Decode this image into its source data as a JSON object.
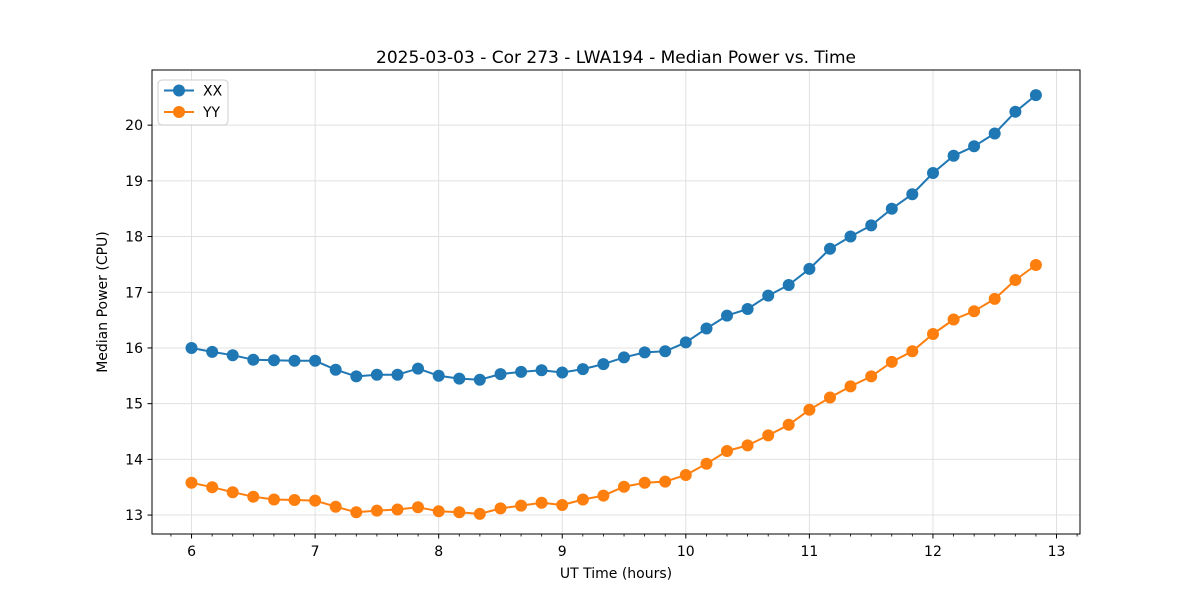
{
  "figure": {
    "title": "2025-03-03 - Cor 273 - LWA194 - Median Power vs. Time",
    "xlabel": "UT Time (hours)",
    "ylabel": "Median Power (CPU)"
  },
  "chart_data": {
    "type": "line",
    "title": "2025-03-03 - Cor 273 - LWA194 - Median Power vs. Time",
    "xlabel": "UT Time (hours)",
    "ylabel": "Median Power (CPU)",
    "xlim": [
      5.68,
      13.19
    ],
    "ylim": [
      12.66,
      20.99
    ],
    "x_ticks": [
      6,
      7,
      8,
      9,
      10,
      11,
      12,
      13
    ],
    "y_ticks": [
      13,
      14,
      15,
      16,
      17,
      18,
      19,
      20
    ],
    "x_minor_step": 0.1667,
    "grid": true,
    "grid_color": "#e0e0e0",
    "spine_color": "#000000",
    "background_color": "#ffffff",
    "legend_position": "upper left",
    "x": [
      6.0,
      6.167,
      6.333,
      6.5,
      6.667,
      6.833,
      7.0,
      7.167,
      7.333,
      7.5,
      7.667,
      7.833,
      8.0,
      8.167,
      8.333,
      8.5,
      8.667,
      8.833,
      9.0,
      9.167,
      9.333,
      9.5,
      9.667,
      9.833,
      10.0,
      10.167,
      10.333,
      10.5,
      10.667,
      10.833,
      11.0,
      11.167,
      11.333,
      11.5,
      11.667,
      11.833,
      12.0,
      12.167,
      12.333,
      12.5,
      12.667,
      12.833
    ],
    "series": [
      {
        "name": "XX",
        "color": "#1f77b4",
        "marker": "circle",
        "values": [
          16.0,
          15.93,
          15.87,
          15.79,
          15.78,
          15.77,
          15.77,
          15.61,
          15.49,
          15.52,
          15.52,
          15.63,
          15.5,
          15.45,
          15.43,
          15.53,
          15.57,
          15.6,
          15.56,
          15.62,
          15.71,
          15.83,
          15.92,
          15.94,
          16.1,
          16.35,
          16.58,
          16.7,
          16.94,
          17.13,
          17.42,
          17.78,
          18.0,
          18.2,
          18.5,
          18.76,
          19.14,
          19.45,
          19.62,
          19.85,
          20.24,
          20.54
        ]
      },
      {
        "name": "YY",
        "color": "#ff7f0e",
        "marker": "circle",
        "values": [
          13.58,
          13.5,
          13.41,
          13.33,
          13.28,
          13.27,
          13.26,
          13.15,
          13.05,
          13.08,
          13.1,
          13.14,
          13.07,
          13.05,
          13.02,
          13.12,
          13.17,
          13.22,
          13.18,
          13.28,
          13.35,
          13.51,
          13.58,
          13.6,
          13.72,
          13.92,
          14.15,
          14.25,
          14.43,
          14.62,
          14.89,
          15.11,
          15.31,
          15.49,
          15.75,
          15.94,
          16.25,
          16.51,
          16.66,
          16.88,
          17.22,
          17.49
        ]
      }
    ]
  }
}
